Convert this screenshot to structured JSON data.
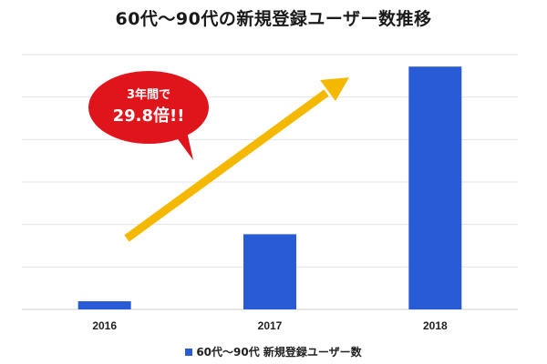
{
  "chart_data": {
    "type": "bar",
    "title": "60代～90代の新規登録ユーザー数推移",
    "categories": [
      "2016",
      "2017",
      "2018"
    ],
    "series": [
      {
        "name": "60代～90代 新規登録ユーザー数",
        "values": [
          3.2,
          29.5,
          95.3
        ],
        "color": "#2a5bd7"
      }
    ],
    "ylim": [
      0,
      100
    ],
    "y_gridlines": 6,
    "y_tick_labels_visible": false,
    "grid": true,
    "legend": "bottom",
    "annotation": {
      "line1": "3年間で",
      "line2": "29.8倍!!",
      "bubble_color": "#e0151c",
      "arrow_color": "#f5b800"
    }
  }
}
